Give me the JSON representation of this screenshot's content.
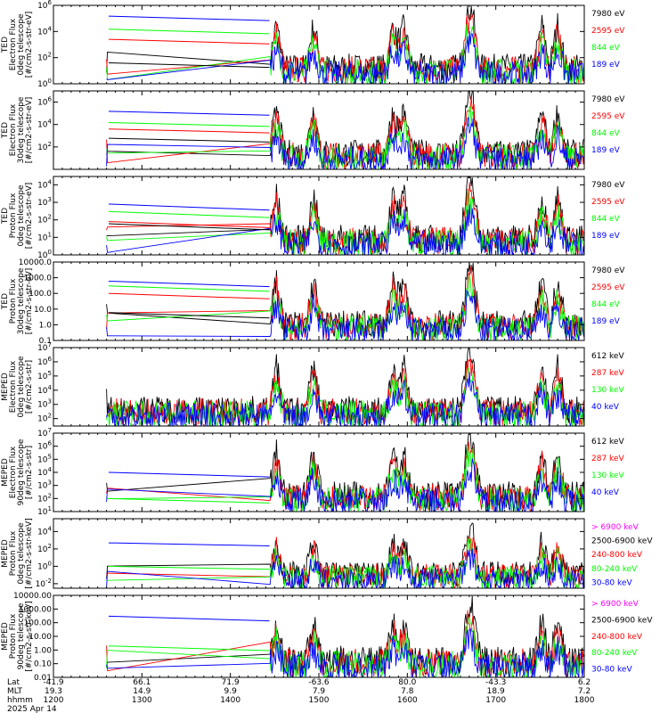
{
  "colors": {
    "blue": "#0000ff",
    "red": "#ff0000",
    "green": "#00ff00",
    "black": "#000000",
    "magenta": "#ff00ff"
  },
  "x_axis": {
    "row_labels": [
      "Lat",
      "MLT",
      "hhmm"
    ],
    "date": "2025 Apr 14",
    "ticks": [
      {
        "lat": "-41.9",
        "mlt": "19.3",
        "hhmm": "1200"
      },
      {
        "lat": "66.1",
        "mlt": "14.9",
        "hhmm": "1300"
      },
      {
        "lat": "71.9",
        "mlt": "9.9",
        "hhmm": "1400"
      },
      {
        "lat": "-63.6",
        "mlt": "7.9",
        "hhmm": "1500"
      },
      {
        "lat": "80.0",
        "mlt": "7.8",
        "hhmm": "1600"
      },
      {
        "lat": "-43.3",
        "mlt": "18.9",
        "hhmm": "1700"
      },
      {
        "lat": "6.2",
        "mlt": "7.2",
        "hhmm": "1800"
      }
    ]
  },
  "chart_data": [
    {
      "type": "line",
      "ylabel_lines": [
        "TED",
        "Electron Flux",
        "0deg telescope",
        "[#/cm2-s-str-eV]"
      ],
      "yscale": "log",
      "yticks": [
        {
          "v": 1,
          "t": "10^0"
        },
        {
          "v": 100,
          "t": "10^2"
        },
        {
          "v": 10000,
          "t": "10^4"
        },
        {
          "v": 1000000,
          "t": "10^6"
        }
      ],
      "ylim": [
        1,
        1000000
      ],
      "series": [
        {
          "name": "7980 eV",
          "color": "black"
        },
        {
          "name": "2595 eV",
          "color": "red"
        },
        {
          "name": "844 eV",
          "color": "green"
        },
        {
          "name": "189 eV",
          "color": "blue"
        }
      ],
      "gap_levels": [
        150000,
        15000,
        2500,
        40
      ]
    },
    {
      "type": "line",
      "ylabel_lines": [
        "TED",
        "Electron Flux",
        "30deg telescope",
        "[#/cm2-s-str-eV]"
      ],
      "yscale": "log",
      "yticks": [
        {
          "v": 100,
          "t": "10^2"
        },
        {
          "v": 10000,
          "t": "10^4"
        },
        {
          "v": 1000000,
          "t": "10^6"
        }
      ],
      "ylim": [
        1,
        10000000
      ],
      "series": [
        {
          "name": "7980 eV",
          "color": "black"
        },
        {
          "name": "2595 eV",
          "color": "red"
        },
        {
          "name": "844 eV",
          "color": "green"
        },
        {
          "name": "189 eV",
          "color": "blue"
        }
      ],
      "gap_levels": [
        150000,
        15000,
        4000,
        600
      ]
    },
    {
      "type": "line",
      "ylabel_lines": [
        "TED",
        "Proton Flux",
        "0deg telescope",
        "[#/cm2-s-str-eV]"
      ],
      "yscale": "log",
      "yticks": [
        {
          "v": 1,
          "t": "10^0"
        },
        {
          "v": 10,
          "t": "10^1"
        },
        {
          "v": 100,
          "t": "10^2"
        },
        {
          "v": 1000,
          "t": "10^3"
        },
        {
          "v": 10000,
          "t": "10^4"
        }
      ],
      "ylim": [
        1,
        30000
      ],
      "series": [
        {
          "name": "7980 eV",
          "color": "black"
        },
        {
          "name": "2595 eV",
          "color": "red"
        },
        {
          "name": "844 eV",
          "color": "green"
        },
        {
          "name": "189 eV",
          "color": "blue"
        }
      ],
      "gap_levels": [
        800,
        300,
        80,
        60
      ]
    },
    {
      "type": "line",
      "ylabel_lines": [
        "TED",
        "Proton Flux",
        "30deg telescope",
        "[#/cm2-s-str-eV]"
      ],
      "yscale": "log",
      "yticks": [
        {
          "v": 0.1,
          "t": "0.1"
        },
        {
          "v": 1,
          "t": "1.0"
        },
        {
          "v": 10,
          "t": "10.0"
        },
        {
          "v": 100,
          "t": "100.0"
        },
        {
          "v": 1000,
          "t": "1000.0"
        },
        {
          "v": 10000,
          "t": "10000.0"
        }
      ],
      "ylim": [
        0.1,
        10000
      ],
      "series": [
        {
          "name": "7980 eV",
          "color": "black"
        },
        {
          "name": "2595 eV",
          "color": "red"
        },
        {
          "name": "844 eV",
          "color": "green"
        },
        {
          "name": "189 eV",
          "color": "blue"
        }
      ],
      "gap_levels": [
        600,
        300,
        100,
        6
      ]
    },
    {
      "type": "line",
      "ylabel_lines": [
        "MEPED",
        "Electron Flux",
        "0deg telescope",
        "[#/cm2-s-str]"
      ],
      "yscale": "log",
      "yticks": [
        {
          "v": 100,
          "t": "10^2"
        },
        {
          "v": 1000,
          "t": "10^3"
        },
        {
          "v": 10000,
          "t": "10^4"
        },
        {
          "v": 100000,
          "t": "10^5"
        },
        {
          "v": 1000000,
          "t": "10^6"
        },
        {
          "v": 10000000,
          "t": "10^7"
        }
      ],
      "ylim": [
        30,
        10000000
      ],
      "series": [
        {
          "name": "612 keV",
          "color": "black"
        },
        {
          "name": "287 keV",
          "color": "red"
        },
        {
          "name": "130 keV",
          "color": "green"
        },
        {
          "name": "40 keV",
          "color": "blue"
        }
      ],
      "gap_levels": []
    },
    {
      "type": "line",
      "ylabel_lines": [
        "MEPED",
        "Electron Flux",
        "90deg telescope",
        "[#/cm2-s-str]"
      ],
      "yscale": "log",
      "yticks": [
        {
          "v": 10,
          "t": "10^1"
        },
        {
          "v": 100,
          "t": "10^2"
        },
        {
          "v": 1000,
          "t": "10^3"
        },
        {
          "v": 10000,
          "t": "10^4"
        },
        {
          "v": 100000,
          "t": "10^5"
        },
        {
          "v": 1000000,
          "t": "10^6"
        },
        {
          "v": 10000000,
          "t": "10^7"
        }
      ],
      "ylim": [
        10,
        10000000
      ],
      "series": [
        {
          "name": "612 keV",
          "color": "black"
        },
        {
          "name": "287 keV",
          "color": "red"
        },
        {
          "name": "130 keV",
          "color": "green"
        },
        {
          "name": "40 keV",
          "color": "blue"
        }
      ],
      "gap_levels": [
        10000,
        100
      ]
    },
    {
      "type": "line",
      "ylabel_lines": [
        "MEPED",
        "Proton Flux",
        "0deg telescope",
        "[#/cm2-s-str-keV]"
      ],
      "yscale": "log",
      "yticks": [
        {
          "v": 0.01,
          "t": "10^-2"
        },
        {
          "v": 1,
          "t": "10^0"
        },
        {
          "v": 100,
          "t": "10^2"
        },
        {
          "v": 10000,
          "t": "10^4"
        }
      ],
      "ylim": [
        0.003,
        300000
      ],
      "series": [
        {
          "name": "> 6900 keV",
          "color": "magenta"
        },
        {
          "name": "2500-6900 keV",
          "color": "black"
        },
        {
          "name": "240-800 keV",
          "color": "red"
        },
        {
          "name": "80-240 keV",
          "color": "green"
        },
        {
          "name": "30-80 keV",
          "color": "blue"
        }
      ],
      "gap_levels": [
        500,
        1
      ]
    },
    {
      "type": "line",
      "ylabel_lines": [
        "MEPED",
        "Proton Flux",
        "90deg telescope",
        "[#/cm2-s-str-keV]"
      ],
      "yscale": "log",
      "yticks": [
        {
          "v": 0.01,
          "t": "0.01"
        },
        {
          "v": 0.1,
          "t": "0.10"
        },
        {
          "v": 1,
          "t": "1.00"
        },
        {
          "v": 10,
          "t": "10.00"
        },
        {
          "v": 100,
          "t": "100.00"
        },
        {
          "v": 1000,
          "t": "1000.00"
        },
        {
          "v": 10000,
          "t": "10000.00"
        }
      ],
      "ylim": [
        0.01,
        10000
      ],
      "series": [
        {
          "name": "> 6900 keV",
          "color": "magenta"
        },
        {
          "name": "2500-6900 keV",
          "color": "black"
        },
        {
          "name": "240-800 keV",
          "color": "red"
        },
        {
          "name": "80-240 keV",
          "color": "green"
        },
        {
          "name": "30-80 keV",
          "color": "blue"
        }
      ],
      "gap_levels": [
        300,
        2
      ]
    }
  ]
}
